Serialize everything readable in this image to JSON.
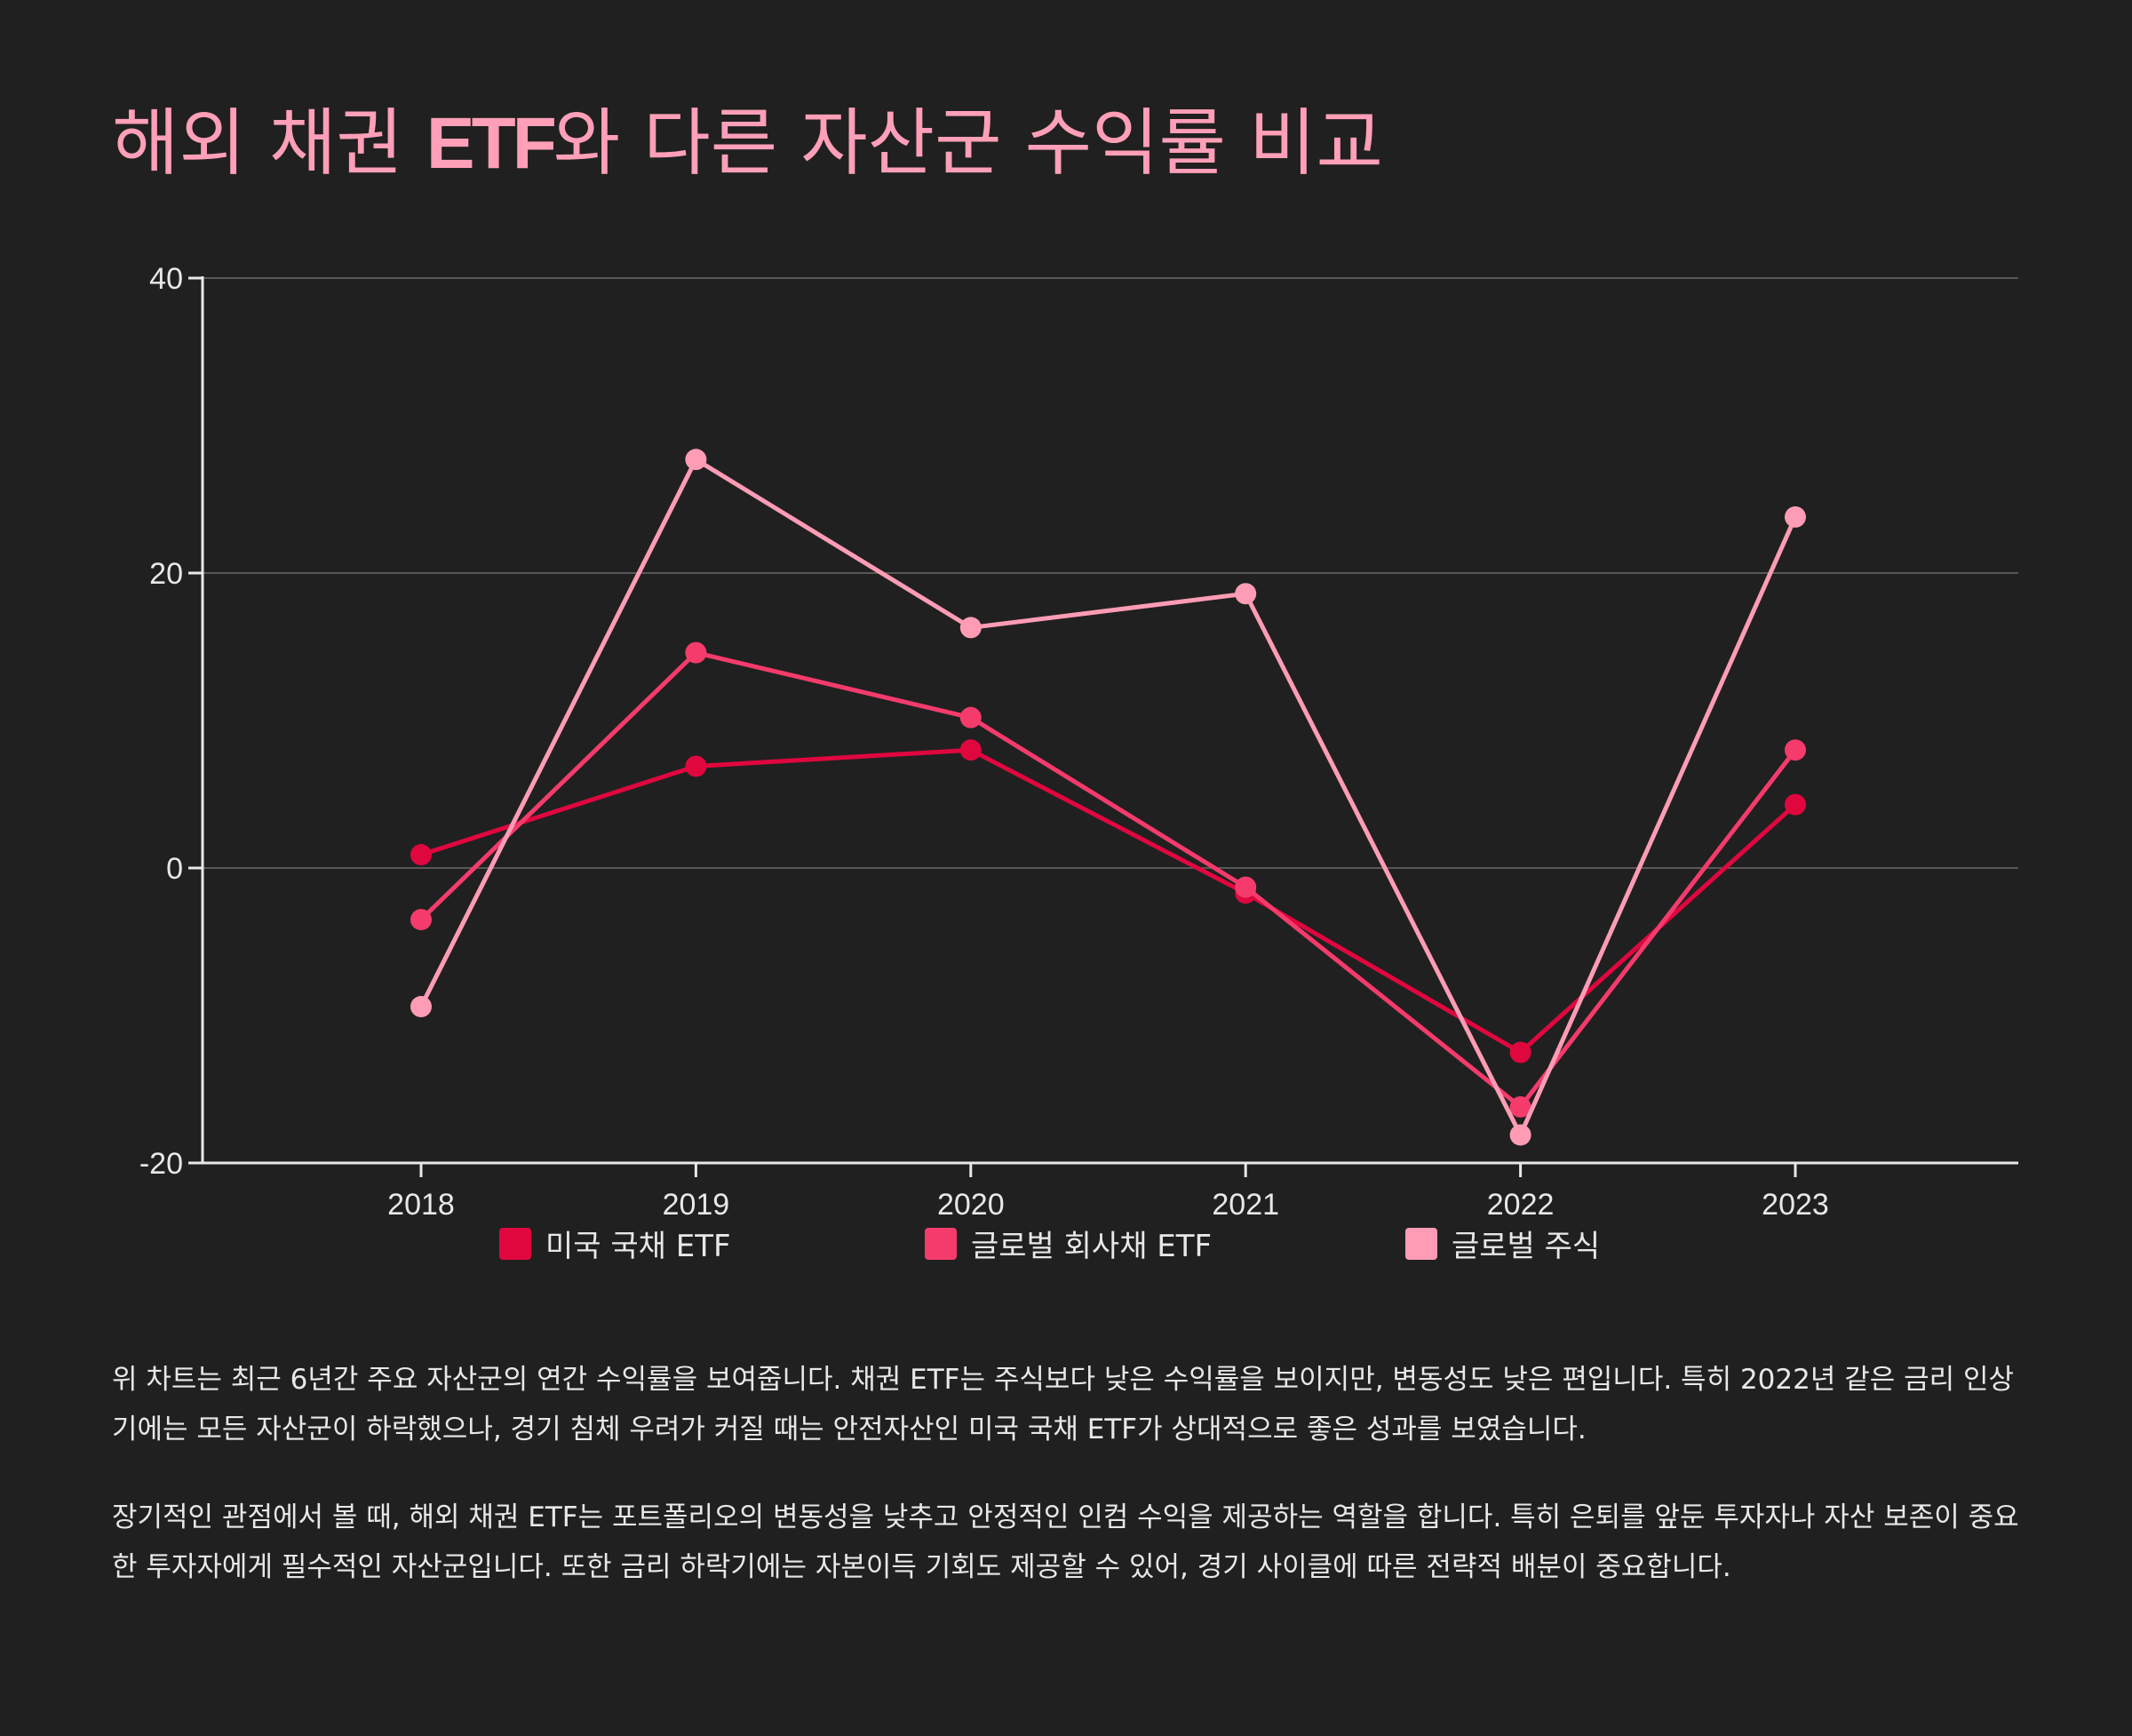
{
  "title": {
    "part1": "해외 채권 ",
    "etf": "ETF",
    "part2": "와 다른 자산군 수익률 비교"
  },
  "chart_data": {
    "type": "line",
    "title": "해외 채권 ETF와 다른 자산군 수익률 비교",
    "xlabel": "",
    "ylabel": "",
    "categories": [
      "2018",
      "2019",
      "2020",
      "2021",
      "2022",
      "2023"
    ],
    "ylim": [
      -20,
      40
    ],
    "yticks": [
      -20,
      0,
      20,
      40
    ],
    "grid": true,
    "legend_position": "bottom",
    "series": [
      {
        "name": "미국 국채 ETF",
        "color": "#e0073f",
        "values": [
          0.9,
          6.9,
          8.0,
          -1.7,
          -12.5,
          4.3
        ]
      },
      {
        "name": "글로벌 회사채 ETF",
        "color": "#f43b6c",
        "values": [
          -3.5,
          14.6,
          10.2,
          -1.3,
          -16.2,
          8.0
        ]
      },
      {
        "name": "글로벌 주식",
        "color": "#ff9cb5",
        "values": [
          -9.4,
          27.7,
          16.3,
          18.6,
          -18.1,
          23.8
        ]
      }
    ]
  },
  "description": {
    "p1": "위 차트는 최근 6년간 주요 자산군의 연간 수익률을 보여줍니다. 채권 ETF는 주식보다 낮은 수익률을 보이지만, 변동성도 낮은 편입니다. 특히 2022년 같은 금리 인상기에는 모든 자산군이 하락했으나, 경기 침체 우려가 커질 때는 안전자산인 미국 국채 ETF가 상대적으로 좋은 성과를 보였습니다.",
    "p2": "장기적인 관점에서 볼 때, 해외 채권 ETF는 포트폴리오의 변동성을 낮추고 안정적인 인컴 수익을 제공하는 역할을 합니다. 특히 은퇴를 앞둔 투자자나 자산 보존이 중요한 투자자에게 필수적인 자산군입니다. 또한 금리 하락기에는 자본이득 기회도 제공할 수 있어, 경기 사이클에 따른 전략적 배분이 중요합니다."
  }
}
